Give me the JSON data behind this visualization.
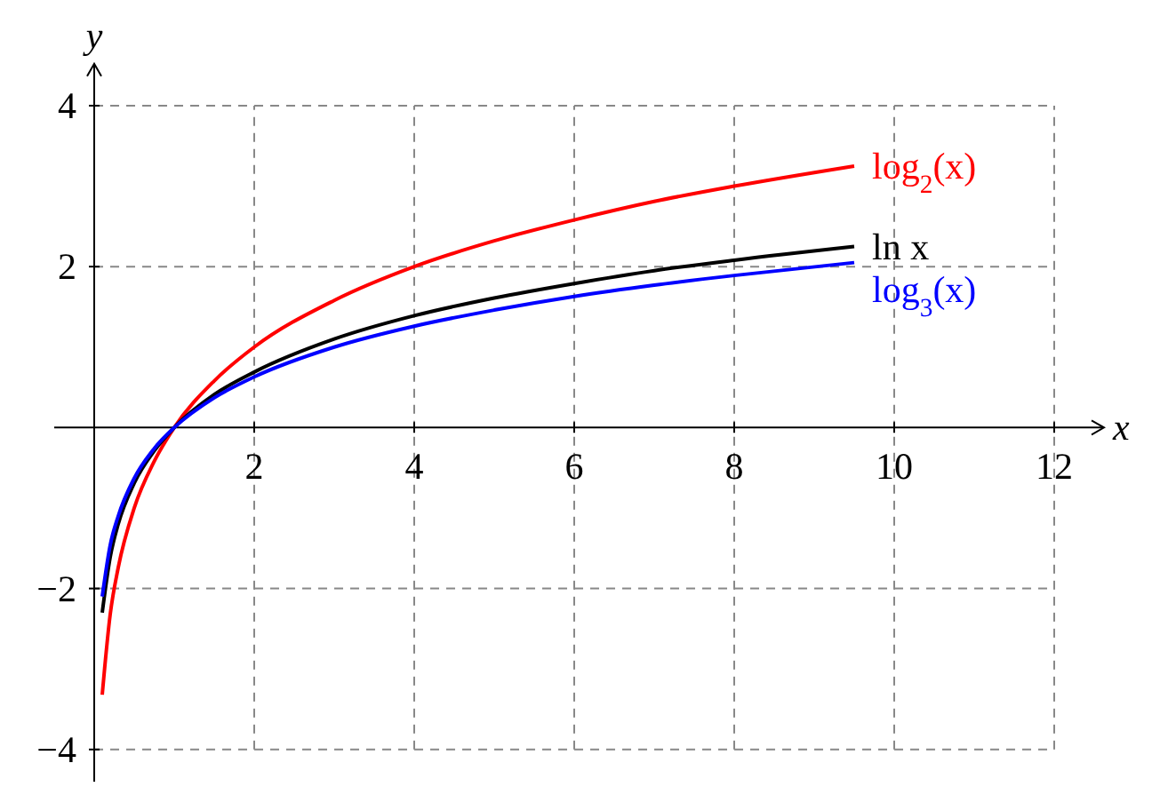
{
  "chart_data": {
    "type": "line",
    "xlabel": "x",
    "ylabel": "y",
    "xlim": [
      -0.5,
      12.6
    ],
    "ylim": [
      -4.4,
      4.5
    ],
    "xticks": [
      2,
      4,
      6,
      8,
      10,
      12
    ],
    "yticks": [
      -4,
      -2,
      2,
      4
    ],
    "grid": true,
    "line_style": "solid",
    "marker": "none",
    "x": [
      0.1,
      0.2,
      0.3,
      0.5,
      0.75,
      1,
      1.5,
      2,
      3,
      4,
      5,
      6,
      7,
      8,
      9.5
    ],
    "series": [
      {
        "name": "log$_{2}$(x)",
        "color": "#ff0000",
        "values": [
          -3.32,
          -2.32,
          -1.74,
          -1,
          -0.42,
          0,
          0.58,
          1,
          1.58,
          2,
          2.32,
          2.58,
          2.81,
          3,
          3.25
        ]
      },
      {
        "name": "ln x",
        "color": "#000000",
        "values": [
          -2.3,
          -1.61,
          -1.2,
          -0.69,
          -0.29,
          0,
          0.41,
          0.69,
          1.1,
          1.39,
          1.61,
          1.79,
          1.95,
          2.08,
          2.25
        ]
      },
      {
        "name": "log$_{3}$(x)",
        "color": "#0000ff",
        "values": [
          -2.1,
          -1.46,
          -1.1,
          -0.63,
          -0.26,
          0,
          0.37,
          0.63,
          1,
          1.26,
          1.46,
          1.63,
          1.77,
          1.89,
          2.05
        ]
      }
    ]
  }
}
